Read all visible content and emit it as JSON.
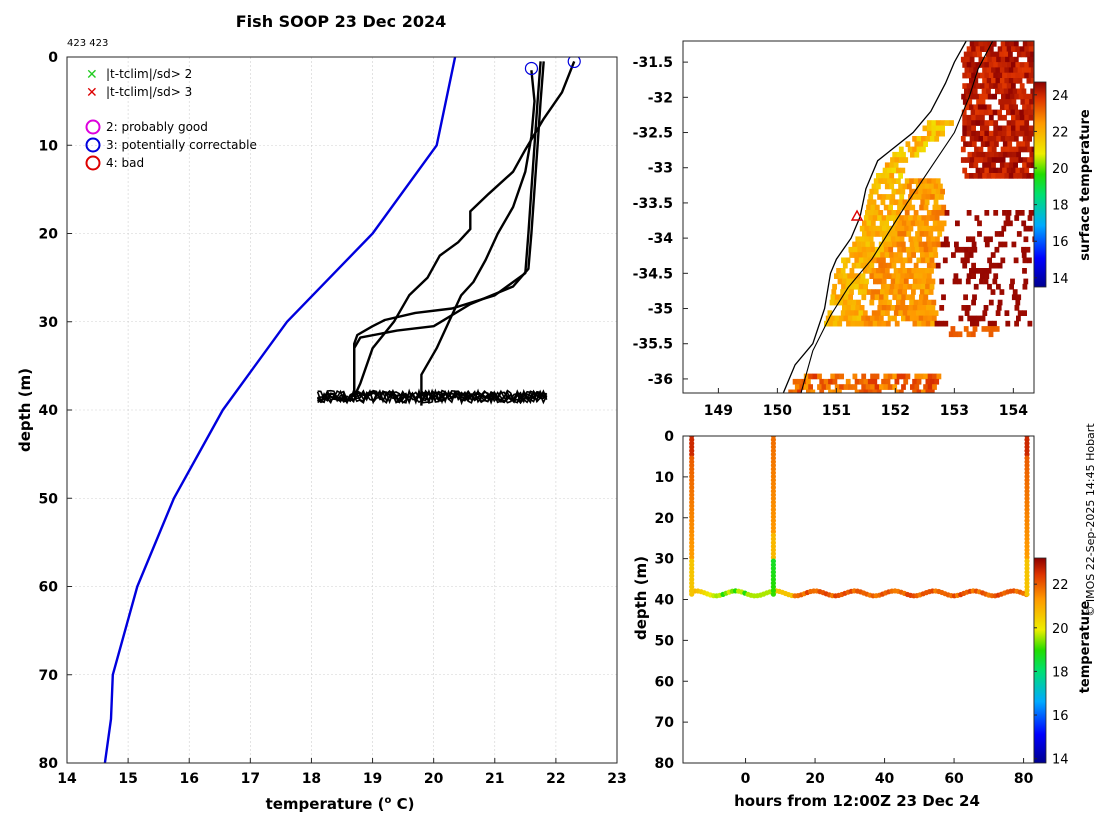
{
  "title": "Fish SOOP 23 Dec 2024",
  "subtitle": "423 423",
  "credit": "© IMOS 22-Sep-2025 14:45 Hobart",
  "colors": {
    "clim": "#0000dd",
    "profile": "#000000",
    "grid": "#d0d0d0",
    "coast": "#000000"
  },
  "legend": {
    "items": [
      {
        "symbol": "cross",
        "color": "#22cc22",
        "label": "|t-tclim|/sd> 2"
      },
      {
        "symbol": "cross",
        "color": "#dd0000",
        "label": "|t-tclim|/sd> 3"
      },
      {
        "symbol": "circle",
        "color": "#dd00dd",
        "label": "2: probably good"
      },
      {
        "symbol": "circle",
        "color": "#0000dd",
        "label": "3: potentially correctable"
      },
      {
        "symbol": "circle",
        "color": "#dd0000",
        "label": "4: bad"
      }
    ]
  },
  "chart_data": [
    {
      "id": "profile",
      "type": "line",
      "xlabel": "temperature (",
      "xlabel_sup": "o",
      "xlabel_tail": " C)",
      "ylabel": "depth (m)",
      "xlim": [
        14,
        23
      ],
      "ylim": [
        0,
        80
      ],
      "xticks": [
        14,
        15,
        16,
        17,
        18,
        19,
        20,
        21,
        22,
        23
      ],
      "yticks": [
        0,
        10,
        20,
        30,
        40,
        50,
        60,
        70,
        80
      ],
      "series": [
        {
          "name": "climatology",
          "points": [
            [
              20.35,
              0
            ],
            [
              20.2,
              5
            ],
            [
              20.05,
              10
            ],
            [
              19.0,
              20
            ],
            [
              17.6,
              30
            ],
            [
              16.55,
              40
            ],
            [
              15.75,
              50
            ],
            [
              15.15,
              60
            ],
            [
              14.75,
              70
            ],
            [
              14.72,
              75
            ],
            [
              14.62,
              80
            ]
          ]
        },
        {
          "name": "profile-1",
          "points": [
            [
              21.8,
              0.5
            ],
            [
              21.75,
              5
            ],
            [
              21.7,
              10
            ],
            [
              21.65,
              15
            ],
            [
              21.6,
              20
            ],
            [
              21.55,
              24
            ],
            [
              21.3,
              26
            ],
            [
              20.6,
              28
            ],
            [
              20.0,
              30.5
            ],
            [
              19.4,
              31
            ],
            [
              18.8,
              31.8
            ],
            [
              18.7,
              33
            ],
            [
              18.7,
              37
            ],
            [
              18.7,
              38.5
            ]
          ]
        },
        {
          "name": "profile-2",
          "points": [
            [
              21.75,
              0.5
            ],
            [
              21.7,
              5
            ],
            [
              21.65,
              10
            ],
            [
              21.6,
              15
            ],
            [
              21.55,
              20
            ],
            [
              21.5,
              24.5
            ],
            [
              21.0,
              27
            ],
            [
              20.3,
              28.5
            ],
            [
              19.7,
              29
            ],
            [
              19.2,
              29.8
            ],
            [
              19.0,
              30.5
            ],
            [
              18.75,
              31.5
            ],
            [
              18.7,
              32.5
            ],
            [
              18.7,
              38.5
            ]
          ]
        },
        {
          "name": "profile-3",
          "points": [
            [
              22.3,
              0.5
            ],
            [
              22.1,
              4
            ],
            [
              21.8,
              7
            ],
            [
              21.5,
              10.5
            ],
            [
              21.3,
              13
            ],
            [
              20.9,
              15.5
            ],
            [
              20.6,
              17.5
            ],
            [
              20.6,
              19.5
            ],
            [
              20.4,
              21
            ],
            [
              20.1,
              22.5
            ],
            [
              19.9,
              25
            ],
            [
              19.6,
              27
            ],
            [
              19.35,
              30
            ],
            [
              19.0,
              33
            ],
            [
              18.8,
              37
            ],
            [
              18.7,
              38.5
            ]
          ]
        },
        {
          "name": "profile-4",
          "points": [
            [
              21.6,
              1.5
            ],
            [
              21.65,
              5
            ],
            [
              21.6,
              9
            ],
            [
              21.5,
              13
            ],
            [
              21.3,
              17
            ],
            [
              21.05,
              20
            ],
            [
              20.85,
              23
            ],
            [
              20.65,
              25.5
            ],
            [
              20.45,
              27
            ],
            [
              20.25,
              30
            ],
            [
              20.05,
              33
            ],
            [
              19.8,
              36
            ],
            [
              19.8,
              38
            ],
            [
              19.8,
              39.5
            ]
          ]
        }
      ],
      "bottom_band": {
        "xmin": 18.1,
        "xmax": 21.85,
        "depth": 38.5,
        "jitter": 0.7
      },
      "flag_circles": [
        {
          "x": 21.6,
          "y": 1.3,
          "color": "#0000dd"
        },
        {
          "x": 22.3,
          "y": 0.5,
          "color": "#0000dd"
        }
      ]
    },
    {
      "id": "map",
      "type": "heatmap",
      "xlim": [
        148.4,
        154.35
      ],
      "ylim": [
        -36.2,
        -31.2
      ],
      "xticks": [
        149,
        150,
        151,
        152,
        153,
        154
      ],
      "yticks": [
        -31.5,
        -32,
        -32.5,
        -33,
        -33.5,
        -34,
        -34.5,
        -35,
        -35.5,
        -36
      ],
      "ytick_labels": [
        "-31.5",
        "-32",
        "-32.5",
        "-33",
        "-33.5",
        "-34",
        "-34.5",
        "-35",
        "-35.5",
        "-36"
      ],
      "coastline": [
        [
          153.2,
          -31.2
        ],
        [
          153.0,
          -31.5
        ],
        [
          152.85,
          -31.8
        ],
        [
          152.6,
          -32.2
        ],
        [
          152.3,
          -32.5
        ],
        [
          152.0,
          -32.7
        ],
        [
          151.7,
          -32.9
        ],
        [
          151.5,
          -33.3
        ],
        [
          151.4,
          -33.7
        ],
        [
          151.25,
          -34.0
        ],
        [
          151.0,
          -34.3
        ],
        [
          150.9,
          -34.5
        ],
        [
          150.8,
          -35.0
        ],
        [
          150.6,
          -35.5
        ],
        [
          150.3,
          -35.8
        ],
        [
          150.1,
          -36.2
        ]
      ],
      "shelf_line": [
        [
          153.65,
          -31.2
        ],
        [
          153.4,
          -31.6
        ],
        [
          153.25,
          -32.0
        ],
        [
          153.0,
          -32.5
        ],
        [
          152.6,
          -33.0
        ],
        [
          152.2,
          -33.5
        ],
        [
          151.9,
          -33.9
        ],
        [
          151.6,
          -34.3
        ],
        [
          151.2,
          -34.7
        ],
        [
          150.9,
          -35.1
        ],
        [
          150.6,
          -35.6
        ],
        [
          150.4,
          -36.2
        ]
      ],
      "ship_position": [
        151.35,
        -33.7
      ],
      "colorbar": {
        "label": "surface temperature",
        "min": 13.5,
        "max": 24.7,
        "ticks": [
          14,
          16,
          18,
          20,
          22,
          24
        ]
      }
    },
    {
      "id": "section",
      "type": "scatter",
      "xlabel": "hours from 12:00Z 23 Dec 24",
      "ylabel": "depth (m)",
      "xlim": [
        -18,
        83
      ],
      "ylim": [
        0,
        80
      ],
      "xticks": [
        0,
        20,
        40,
        60,
        80
      ],
      "yticks": [
        0,
        10,
        20,
        30,
        40,
        50,
        60,
        70,
        80
      ],
      "casts": [
        {
          "x": -15.5
        },
        {
          "x": 8
        },
        {
          "x": 81
        }
      ],
      "colorbar": {
        "label": "temperature",
        "min": 13.8,
        "max": 23.2,
        "ticks": [
          14,
          16,
          18,
          20,
          22
        ]
      }
    }
  ]
}
